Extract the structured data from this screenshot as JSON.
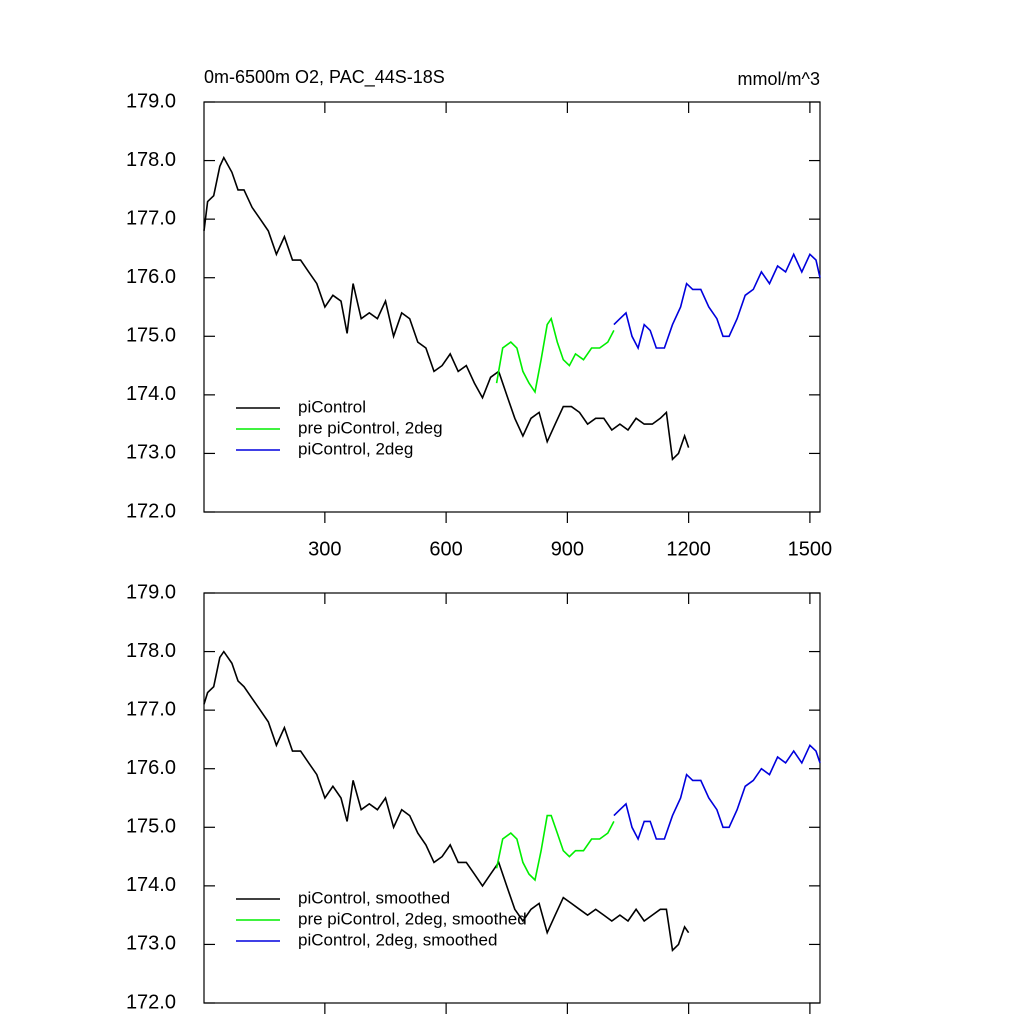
{
  "chart_data": [
    {
      "type": "line",
      "title": "0m-6500m O2, PAC_44S-18S",
      "units": "mmol/m^3",
      "xlim": [
        1,
        1525
      ],
      "ylim": [
        172,
        179
      ],
      "xticks": [
        300,
        600,
        900,
        1200,
        1500
      ],
      "xtick_labels": true,
      "yticks": [
        {
          "value": 172,
          "label": "172.0"
        },
        {
          "value": 173,
          "label": "173.0"
        },
        {
          "value": 174,
          "label": "174.0"
        },
        {
          "value": 175,
          "label": "175.0"
        },
        {
          "value": 176,
          "label": "176.0"
        },
        {
          "value": 177,
          "label": "177.0"
        },
        {
          "value": 178,
          "label": "178.0"
        },
        {
          "value": 179,
          "label": "179.0"
        }
      ],
      "legend": "lower left",
      "series": [
        {
          "name": "piControl",
          "color": "#000000",
          "x": [
            1,
            10,
            25,
            40,
            50,
            70,
            85,
            100,
            120,
            140,
            160,
            180,
            200,
            220,
            240,
            260,
            280,
            300,
            320,
            340,
            355,
            370,
            390,
            410,
            430,
            450,
            470,
            490,
            510,
            530,
            550,
            570,
            590,
            610,
            630,
            650,
            670,
            690,
            710,
            730,
            750,
            770,
            790,
            810,
            830,
            850,
            870,
            890,
            910,
            930,
            950,
            970,
            990,
            1010,
            1030,
            1050,
            1070,
            1090,
            1110,
            1130,
            1145,
            1160,
            1175,
            1190,
            1200
          ],
          "values": [
            176.8,
            177.3,
            177.4,
            177.9,
            178.05,
            177.8,
            177.5,
            177.5,
            177.2,
            177.0,
            176.8,
            176.4,
            176.7,
            176.3,
            176.3,
            176.1,
            175.9,
            175.5,
            175.7,
            175.6,
            175.05,
            175.9,
            175.3,
            175.4,
            175.3,
            175.6,
            175.0,
            175.4,
            175.3,
            174.9,
            174.8,
            174.4,
            174.5,
            174.7,
            174.4,
            174.5,
            174.2,
            173.95,
            174.3,
            174.4,
            174.0,
            173.6,
            173.3,
            173.6,
            173.7,
            173.2,
            173.5,
            173.8,
            173.8,
            173.7,
            173.5,
            173.6,
            173.6,
            173.4,
            173.5,
            173.4,
            173.6,
            173.5,
            173.5,
            173.6,
            173.7,
            172.9,
            173.0,
            173.3,
            173.1
          ]
        },
        {
          "name": "pre piControl, 2deg",
          "color": "#00ee00",
          "x": [
            725,
            740,
            760,
            775,
            790,
            805,
            820,
            835,
            850,
            860,
            875,
            890,
            905,
            920,
            940,
            960,
            980,
            1000,
            1015
          ],
          "values": [
            174.2,
            174.8,
            174.9,
            174.8,
            174.4,
            174.2,
            174.05,
            174.6,
            175.2,
            175.3,
            174.9,
            174.6,
            174.5,
            174.7,
            174.6,
            174.8,
            174.8,
            174.9,
            175.1
          ]
        },
        {
          "name": "piControl, 2deg",
          "color": "#0000dd",
          "x": [
            1015,
            1030,
            1045,
            1060,
            1075,
            1090,
            1105,
            1120,
            1140,
            1160,
            1180,
            1195,
            1210,
            1230,
            1250,
            1270,
            1285,
            1300,
            1320,
            1340,
            1360,
            1380,
            1400,
            1420,
            1440,
            1460,
            1480,
            1500,
            1515,
            1525
          ],
          "values": [
            175.2,
            175.3,
            175.4,
            175.0,
            174.8,
            175.2,
            175.1,
            174.8,
            174.8,
            175.2,
            175.5,
            175.9,
            175.8,
            175.8,
            175.5,
            175.3,
            175.0,
            175.0,
            175.3,
            175.7,
            175.8,
            176.1,
            175.9,
            176.2,
            176.1,
            176.4,
            176.1,
            176.4,
            176.3,
            176.0
          ]
        }
      ]
    },
    {
      "type": "line",
      "xlim": [
        1,
        1525
      ],
      "ylim": [
        172,
        179
      ],
      "xticks": [
        300,
        600,
        900,
        1200,
        1500
      ],
      "xtick_labels": false,
      "yticks": [
        {
          "value": 172,
          "label": "172.0"
        },
        {
          "value": 173,
          "label": "173.0"
        },
        {
          "value": 174,
          "label": "174.0"
        },
        {
          "value": 175,
          "label": "175.0"
        },
        {
          "value": 176,
          "label": "176.0"
        },
        {
          "value": 177,
          "label": "177.0"
        },
        {
          "value": 178,
          "label": "178.0"
        },
        {
          "value": 179,
          "label": "179.0"
        }
      ],
      "legend": "lower left",
      "series": [
        {
          "name": "piControl, smoothed",
          "color": "#000000",
          "x": [
            1,
            10,
            25,
            40,
            50,
            70,
            85,
            100,
            120,
            140,
            160,
            180,
            200,
            220,
            240,
            260,
            280,
            300,
            320,
            340,
            355,
            370,
            390,
            410,
            430,
            450,
            470,
            490,
            510,
            530,
            550,
            570,
            590,
            610,
            630,
            650,
            670,
            690,
            710,
            730,
            750,
            770,
            790,
            810,
            830,
            850,
            870,
            890,
            910,
            930,
            950,
            970,
            990,
            1010,
            1030,
            1050,
            1070,
            1090,
            1110,
            1130,
            1145,
            1160,
            1175,
            1190,
            1200
          ],
          "values": [
            177.1,
            177.3,
            177.4,
            177.9,
            178.0,
            177.8,
            177.5,
            177.4,
            177.2,
            177.0,
            176.8,
            176.4,
            176.7,
            176.3,
            176.3,
            176.1,
            175.9,
            175.5,
            175.7,
            175.5,
            175.1,
            175.8,
            175.3,
            175.4,
            175.3,
            175.5,
            175.0,
            175.3,
            175.2,
            174.9,
            174.7,
            174.4,
            174.5,
            174.7,
            174.4,
            174.4,
            174.2,
            174.0,
            174.2,
            174.4,
            174.0,
            173.6,
            173.4,
            173.6,
            173.7,
            173.2,
            173.5,
            173.8,
            173.7,
            173.6,
            173.5,
            173.6,
            173.5,
            173.4,
            173.5,
            173.4,
            173.6,
            173.4,
            173.5,
            173.6,
            173.6,
            172.9,
            173.0,
            173.3,
            173.2
          ]
        },
        {
          "name": "pre piControl, 2deg, smoothed",
          "color": "#00ee00",
          "x": [
            725,
            740,
            760,
            775,
            790,
            805,
            820,
            835,
            850,
            860,
            875,
            890,
            905,
            920,
            940,
            960,
            980,
            1000,
            1015
          ],
          "values": [
            174.3,
            174.8,
            174.9,
            174.8,
            174.4,
            174.2,
            174.1,
            174.6,
            175.2,
            175.2,
            174.9,
            174.6,
            174.5,
            174.6,
            174.6,
            174.8,
            174.8,
            174.9,
            175.1
          ]
        },
        {
          "name": "piControl, 2deg, smoothed",
          "color": "#0000dd",
          "x": [
            1015,
            1030,
            1045,
            1060,
            1075,
            1090,
            1105,
            1120,
            1140,
            1160,
            1180,
            1195,
            1210,
            1230,
            1250,
            1270,
            1285,
            1300,
            1320,
            1340,
            1360,
            1380,
            1400,
            1420,
            1440,
            1460,
            1480,
            1500,
            1515,
            1525
          ],
          "values": [
            175.2,
            175.3,
            175.4,
            175.0,
            174.8,
            175.1,
            175.1,
            174.8,
            174.8,
            175.2,
            175.5,
            175.9,
            175.8,
            175.8,
            175.5,
            175.3,
            175.0,
            175.0,
            175.3,
            175.7,
            175.8,
            176.0,
            175.9,
            176.2,
            176.1,
            176.3,
            176.1,
            176.4,
            176.3,
            176.1
          ]
        }
      ]
    }
  ]
}
